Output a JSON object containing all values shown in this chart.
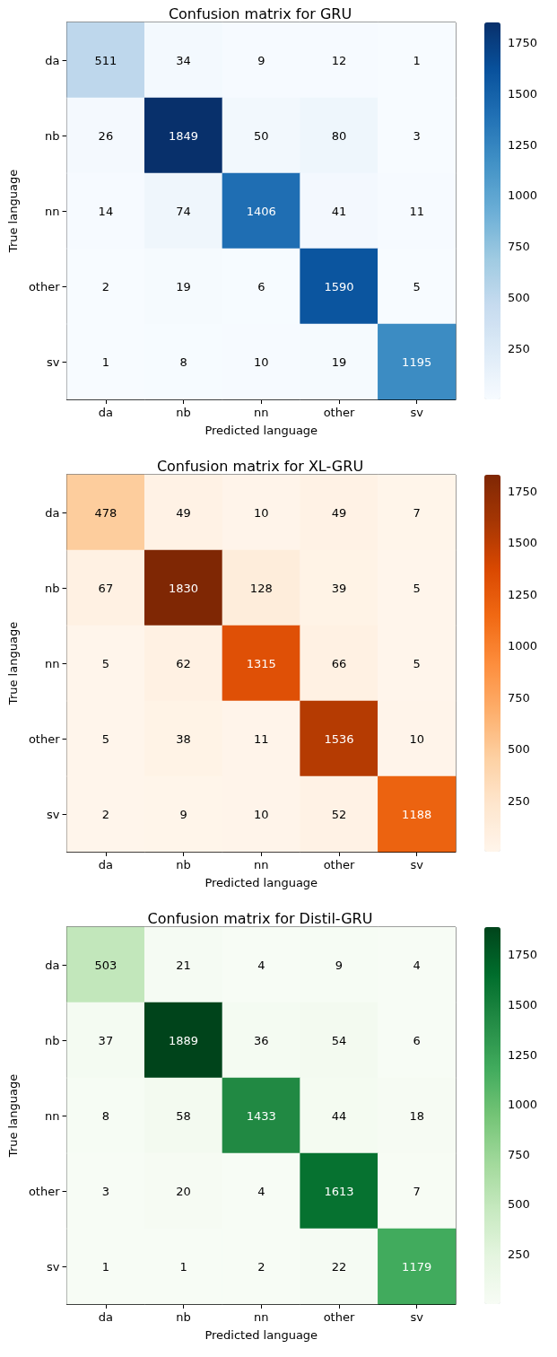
{
  "chart_data": [
    {
      "type": "heatmap",
      "title": "Confusion matrix for GRU",
      "xlabel": "Predicted language",
      "ylabel": "True language",
      "categories": [
        "da",
        "nb",
        "nn",
        "other",
        "sv"
      ],
      "y_categories": [
        "da",
        "nb",
        "nn",
        "other",
        "sv"
      ],
      "cells": [
        [
          511,
          34,
          9,
          12,
          1
        ],
        [
          26,
          1849,
          50,
          80,
          3
        ],
        [
          14,
          74,
          1406,
          41,
          11
        ],
        [
          2,
          19,
          6,
          1590,
          5
        ],
        [
          1,
          8,
          10,
          19,
          1195
        ]
      ],
      "data_labels": true,
      "clim": [
        1,
        1849
      ],
      "cticks": [
        250,
        500,
        750,
        1000,
        1250,
        1500,
        1750
      ],
      "colors": [
        "#f7fbff",
        "#deebf7",
        "#c6dbef",
        "#9ecae1",
        "#6baed6",
        "#4292c6",
        "#2171b5",
        "#08519c",
        "#08306b"
      ]
    },
    {
      "type": "heatmap",
      "title": "Confusion matrix for XL-GRU",
      "xlabel": "Predicted language",
      "ylabel": "True language",
      "categories": [
        "da",
        "nb",
        "nn",
        "other",
        "sv"
      ],
      "y_categories": [
        "da",
        "nb",
        "nn",
        "other",
        "sv"
      ],
      "cells": [
        [
          478,
          49,
          10,
          49,
          7
        ],
        [
          67,
          1830,
          128,
          39,
          5
        ],
        [
          5,
          62,
          1315,
          66,
          5
        ],
        [
          5,
          38,
          11,
          1536,
          10
        ],
        [
          2,
          9,
          10,
          52,
          1188
        ]
      ],
      "data_labels": true,
      "clim": [
        2,
        1830
      ],
      "cticks": [
        250,
        500,
        750,
        1000,
        1250,
        1500,
        1750
      ],
      "colors": [
        "#fff5eb",
        "#fee6ce",
        "#fdd0a2",
        "#fdae6b",
        "#fd8d3c",
        "#f16913",
        "#d94801",
        "#a63603",
        "#7f2704"
      ]
    },
    {
      "type": "heatmap",
      "title": "Confusion matrix for Distil-GRU",
      "xlabel": "Predicted language",
      "ylabel": "True language",
      "categories": [
        "da",
        "nb",
        "nn",
        "other",
        "sv"
      ],
      "y_categories": [
        "da",
        "nb",
        "nn",
        "other",
        "sv"
      ],
      "cells": [
        [
          503,
          21,
          4,
          9,
          4
        ],
        [
          37,
          1889,
          36,
          54,
          6
        ],
        [
          8,
          58,
          1433,
          44,
          18
        ],
        [
          3,
          20,
          4,
          1613,
          7
        ],
        [
          1,
          1,
          2,
          22,
          1179
        ]
      ],
      "data_labels": true,
      "clim": [
        1,
        1889
      ],
      "cticks": [
        250,
        500,
        750,
        1000,
        1250,
        1500,
        1750
      ],
      "colors": [
        "#f7fcf5",
        "#e5f5e0",
        "#c7e9c0",
        "#a1d99b",
        "#74c476",
        "#41ab5d",
        "#238b45",
        "#006d2c",
        "#00441b"
      ]
    }
  ]
}
